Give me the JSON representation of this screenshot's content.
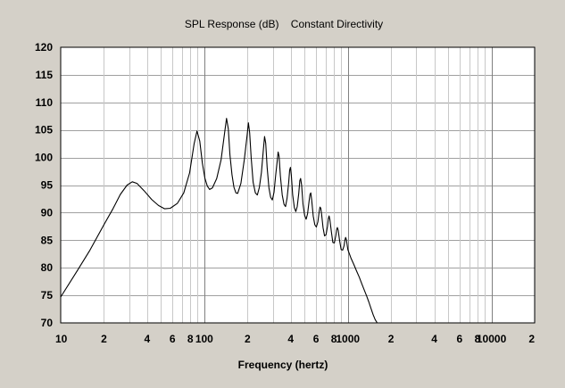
{
  "chart_data": {
    "type": "line",
    "title": "SPL Response (dB)    Constant Directivity",
    "xlabel": "Frequency (hertz)",
    "ylabel": "",
    "x_scale": "log",
    "xlim": [
      10,
      20000
    ],
    "ylim": [
      70,
      120
    ],
    "grid": true,
    "y_ticks": [
      70,
      75,
      80,
      85,
      90,
      95,
      100,
      105,
      110,
      115,
      120
    ],
    "x_tick_labels": [
      {
        "value": 10,
        "label": "10"
      },
      {
        "value": 20,
        "label": "2"
      },
      {
        "value": 40,
        "label": "4"
      },
      {
        "value": 60,
        "label": "6"
      },
      {
        "value": 80,
        "label": "8"
      },
      {
        "value": 100,
        "label": "100"
      },
      {
        "value": 200,
        "label": "2"
      },
      {
        "value": 400,
        "label": "4"
      },
      {
        "value": 600,
        "label": "6"
      },
      {
        "value": 800,
        "label": "8"
      },
      {
        "value": 1000,
        "label": "1000"
      },
      {
        "value": 2000,
        "label": "2"
      },
      {
        "value": 4000,
        "label": "4"
      },
      {
        "value": 6000,
        "label": "6"
      },
      {
        "value": 8000,
        "label": "8"
      },
      {
        "value": 10000,
        "label": "10000"
      },
      {
        "value": 20000,
        "label": "2"
      }
    ],
    "series": [
      {
        "values": [
          [
            10,
            74.7
          ],
          [
            13,
            79.4
          ],
          [
            16,
            83.2
          ],
          [
            20,
            87.8
          ],
          [
            23,
            90.6
          ],
          [
            26,
            93.3
          ],
          [
            29,
            95.0
          ],
          [
            31.5,
            95.6
          ],
          [
            34,
            95.3
          ],
          [
            38,
            94.0
          ],
          [
            43,
            92.4
          ],
          [
            48,
            91.3
          ],
          [
            53,
            90.7
          ],
          [
            58,
            90.8
          ],
          [
            65,
            91.7
          ],
          [
            72,
            93.6
          ],
          [
            79,
            97.2
          ],
          [
            85,
            102.5
          ],
          [
            89,
            104.8
          ],
          [
            93,
            103.0
          ],
          [
            97,
            99.0
          ],
          [
            101,
            96.2
          ],
          [
            105,
            94.8
          ],
          [
            109,
            94.2
          ],
          [
            114,
            94.5
          ],
          [
            122,
            96.2
          ],
          [
            131,
            99.6
          ],
          [
            139,
            104.8
          ],
          [
            143,
            107.1
          ],
          [
            147,
            105.2
          ],
          [
            151,
            100.5
          ],
          [
            156,
            96.9
          ],
          [
            161,
            94.6
          ],
          [
            166,
            93.6
          ],
          [
            171,
            93.5
          ],
          [
            180,
            95.3
          ],
          [
            190,
            99.6
          ],
          [
            199,
            104.1
          ],
          [
            203,
            106.3
          ],
          [
            207,
            104.5
          ],
          [
            212,
            100.0
          ],
          [
            219,
            95.5
          ],
          [
            227,
            93.6
          ],
          [
            234,
            93.2
          ],
          [
            242,
            94.6
          ],
          [
            250,
            97.3
          ],
          [
            258,
            101.5
          ],
          [
            263,
            103.8
          ],
          [
            268,
            102.6
          ],
          [
            274,
            98.2
          ],
          [
            282,
            94.5
          ],
          [
            290,
            92.8
          ],
          [
            298,
            92.3
          ],
          [
            306,
            93.7
          ],
          [
            314,
            96.7
          ],
          [
            322,
            99.4
          ],
          [
            327,
            101.0
          ],
          [
            332,
            100.2
          ],
          [
            339,
            96.7
          ],
          [
            349,
            93.2
          ],
          [
            359,
            91.5
          ],
          [
            368,
            91.1
          ],
          [
            377,
            92.6
          ],
          [
            387,
            95.4
          ],
          [
            393,
            97.7
          ],
          [
            398,
            98.2
          ],
          [
            404,
            96.8
          ],
          [
            413,
            93.2
          ],
          [
            424,
            90.9
          ],
          [
            434,
            90.2
          ],
          [
            444,
            91.1
          ],
          [
            455,
            93.5
          ],
          [
            463,
            95.8
          ],
          [
            469,
            96.2
          ],
          [
            476,
            95.0
          ],
          [
            487,
            91.5
          ],
          [
            500,
            89.5
          ],
          [
            512,
            88.8
          ],
          [
            524,
            89.8
          ],
          [
            537,
            92.1
          ],
          [
            545,
            93.3
          ],
          [
            552,
            93.6
          ],
          [
            560,
            92.3
          ],
          [
            574,
            89.4
          ],
          [
            589,
            87.8
          ],
          [
            603,
            87.4
          ],
          [
            618,
            88.3
          ],
          [
            633,
            90.4
          ],
          [
            640,
            91.0
          ],
          [
            648,
            90.8
          ],
          [
            657,
            89.6
          ],
          [
            672,
            87.3
          ],
          [
            688,
            85.8
          ],
          [
            705,
            86.0
          ],
          [
            722,
            87.6
          ],
          [
            731,
            88.9
          ],
          [
            740,
            89.4
          ],
          [
            750,
            88.7
          ],
          [
            767,
            86.6
          ],
          [
            786,
            84.6
          ],
          [
            805,
            84.5
          ],
          [
            825,
            85.9
          ],
          [
            835,
            86.9
          ],
          [
            845,
            87.3
          ],
          [
            856,
            86.8
          ],
          [
            876,
            84.9
          ],
          [
            898,
            83.3
          ],
          [
            920,
            83.2
          ],
          [
            942,
            84.0
          ],
          [
            954,
            85.0
          ],
          [
            965,
            85.5
          ],
          [
            977,
            85.1
          ],
          [
            1000,
            83.3
          ],
          [
            1050,
            81.8
          ],
          [
            1100,
            80.6
          ],
          [
            1150,
            79.4
          ],
          [
            1200,
            78.3
          ],
          [
            1250,
            77.1
          ],
          [
            1300,
            76.0
          ],
          [
            1350,
            74.9
          ],
          [
            1400,
            73.8
          ],
          [
            1450,
            72.6
          ],
          [
            1500,
            71.5
          ],
          [
            1550,
            70.6
          ],
          [
            1600,
            70.0
          ]
        ]
      }
    ]
  }
}
